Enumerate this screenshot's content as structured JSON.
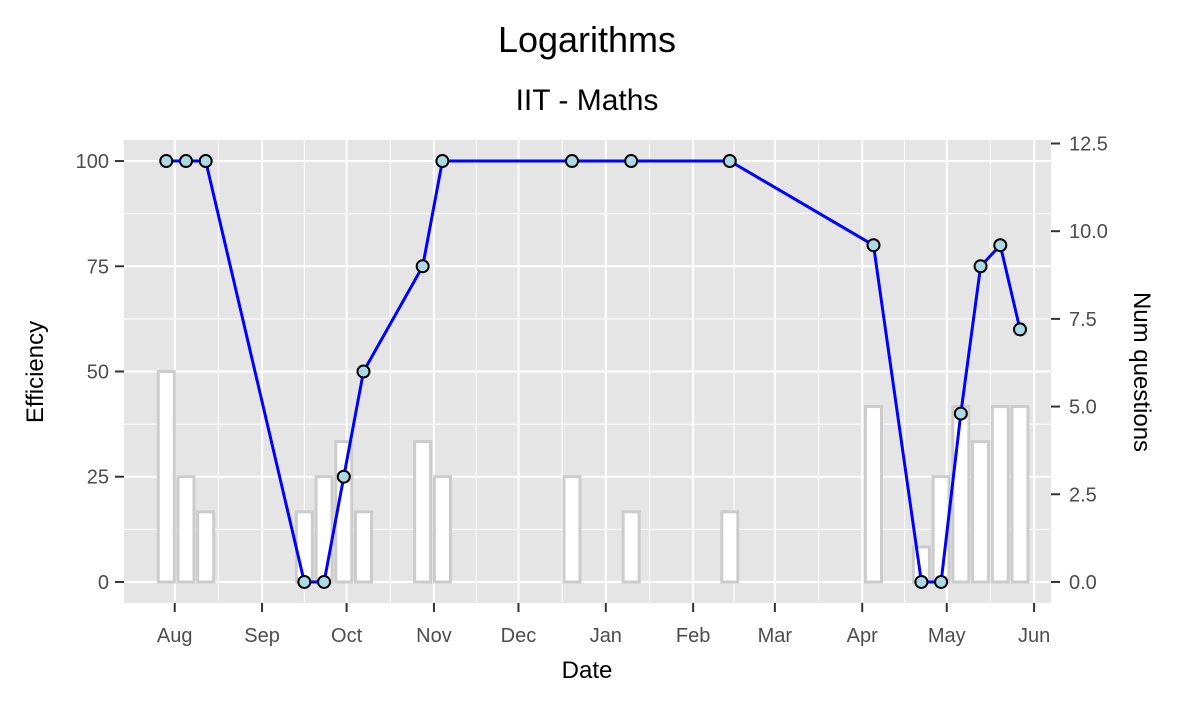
{
  "chart_data": {
    "type": "line",
    "title": "Logarithms",
    "subtitle": "IIT - Maths",
    "xlabel": "Date",
    "ylabel": "Efficiency",
    "y2label": "Num questions",
    "x_ticks": [
      "Aug",
      "Sep",
      "Oct",
      "Nov",
      "Dec",
      "Jan",
      "Feb",
      "Mar",
      "Apr",
      "May",
      "Jun"
    ],
    "x_tick_dates": [
      "2023-08-01",
      "2023-09-01",
      "2023-10-01",
      "2023-11-01",
      "2023-12-01",
      "2024-01-01",
      "2024-02-01",
      "2024-03-01",
      "2024-04-01",
      "2024-05-01",
      "2024-06-01"
    ],
    "xlim": [
      "2023-07-14",
      "2024-06-07"
    ],
    "ylim": [
      -5,
      105
    ],
    "y_ticks": [
      0,
      25,
      50,
      75,
      100
    ],
    "y2lim": [
      -0.6,
      12.6
    ],
    "y2_ticks": [
      "0.0",
      "2.5",
      "5.0",
      "7.5",
      "10.0",
      "12.5"
    ],
    "grid": true,
    "colors": {
      "panel": "#e5e5e5",
      "grid": "#ffffff",
      "line": "#0000ff",
      "point_fill": "#add8e6",
      "point_stroke": "#000000",
      "bar_stroke": "#cccccc",
      "bar_fill": "#ffffff"
    },
    "series": [
      {
        "kind": "line",
        "x": [
          "2023-07-29",
          "2023-08-05",
          "2023-08-12",
          "2023-09-16",
          "2023-09-23",
          "2023-09-30",
          "2023-10-07",
          "2023-10-28",
          "2023-11-04",
          "2023-12-20",
          "2024-01-10",
          "2024-02-14",
          "2024-04-05",
          "2024-04-22",
          "2024-04-29",
          "2024-05-06",
          "2024-05-13",
          "2024-05-20",
          "2024-05-27"
        ],
        "values": [
          100,
          100,
          100,
          0,
          0,
          25,
          50,
          75,
          100,
          100,
          100,
          100,
          80,
          0,
          0,
          40,
          75,
          80,
          60
        ]
      },
      {
        "kind": "bar",
        "axis": "right",
        "x": [
          "2023-07-29",
          "2023-08-05",
          "2023-08-12",
          "2023-09-16",
          "2023-09-23",
          "2023-09-30",
          "2023-10-07",
          "2023-10-28",
          "2023-11-04",
          "2023-12-20",
          "2024-01-10",
          "2024-02-14",
          "2024-04-05",
          "2024-04-22",
          "2024-04-29",
          "2024-05-06",
          "2024-05-13",
          "2024-05-20",
          "2024-05-27"
        ],
        "values": [
          6,
          3,
          2,
          2,
          3,
          4,
          2,
          4,
          3,
          3,
          2,
          2,
          5,
          1,
          3,
          5,
          4,
          5,
          5
        ]
      }
    ]
  }
}
